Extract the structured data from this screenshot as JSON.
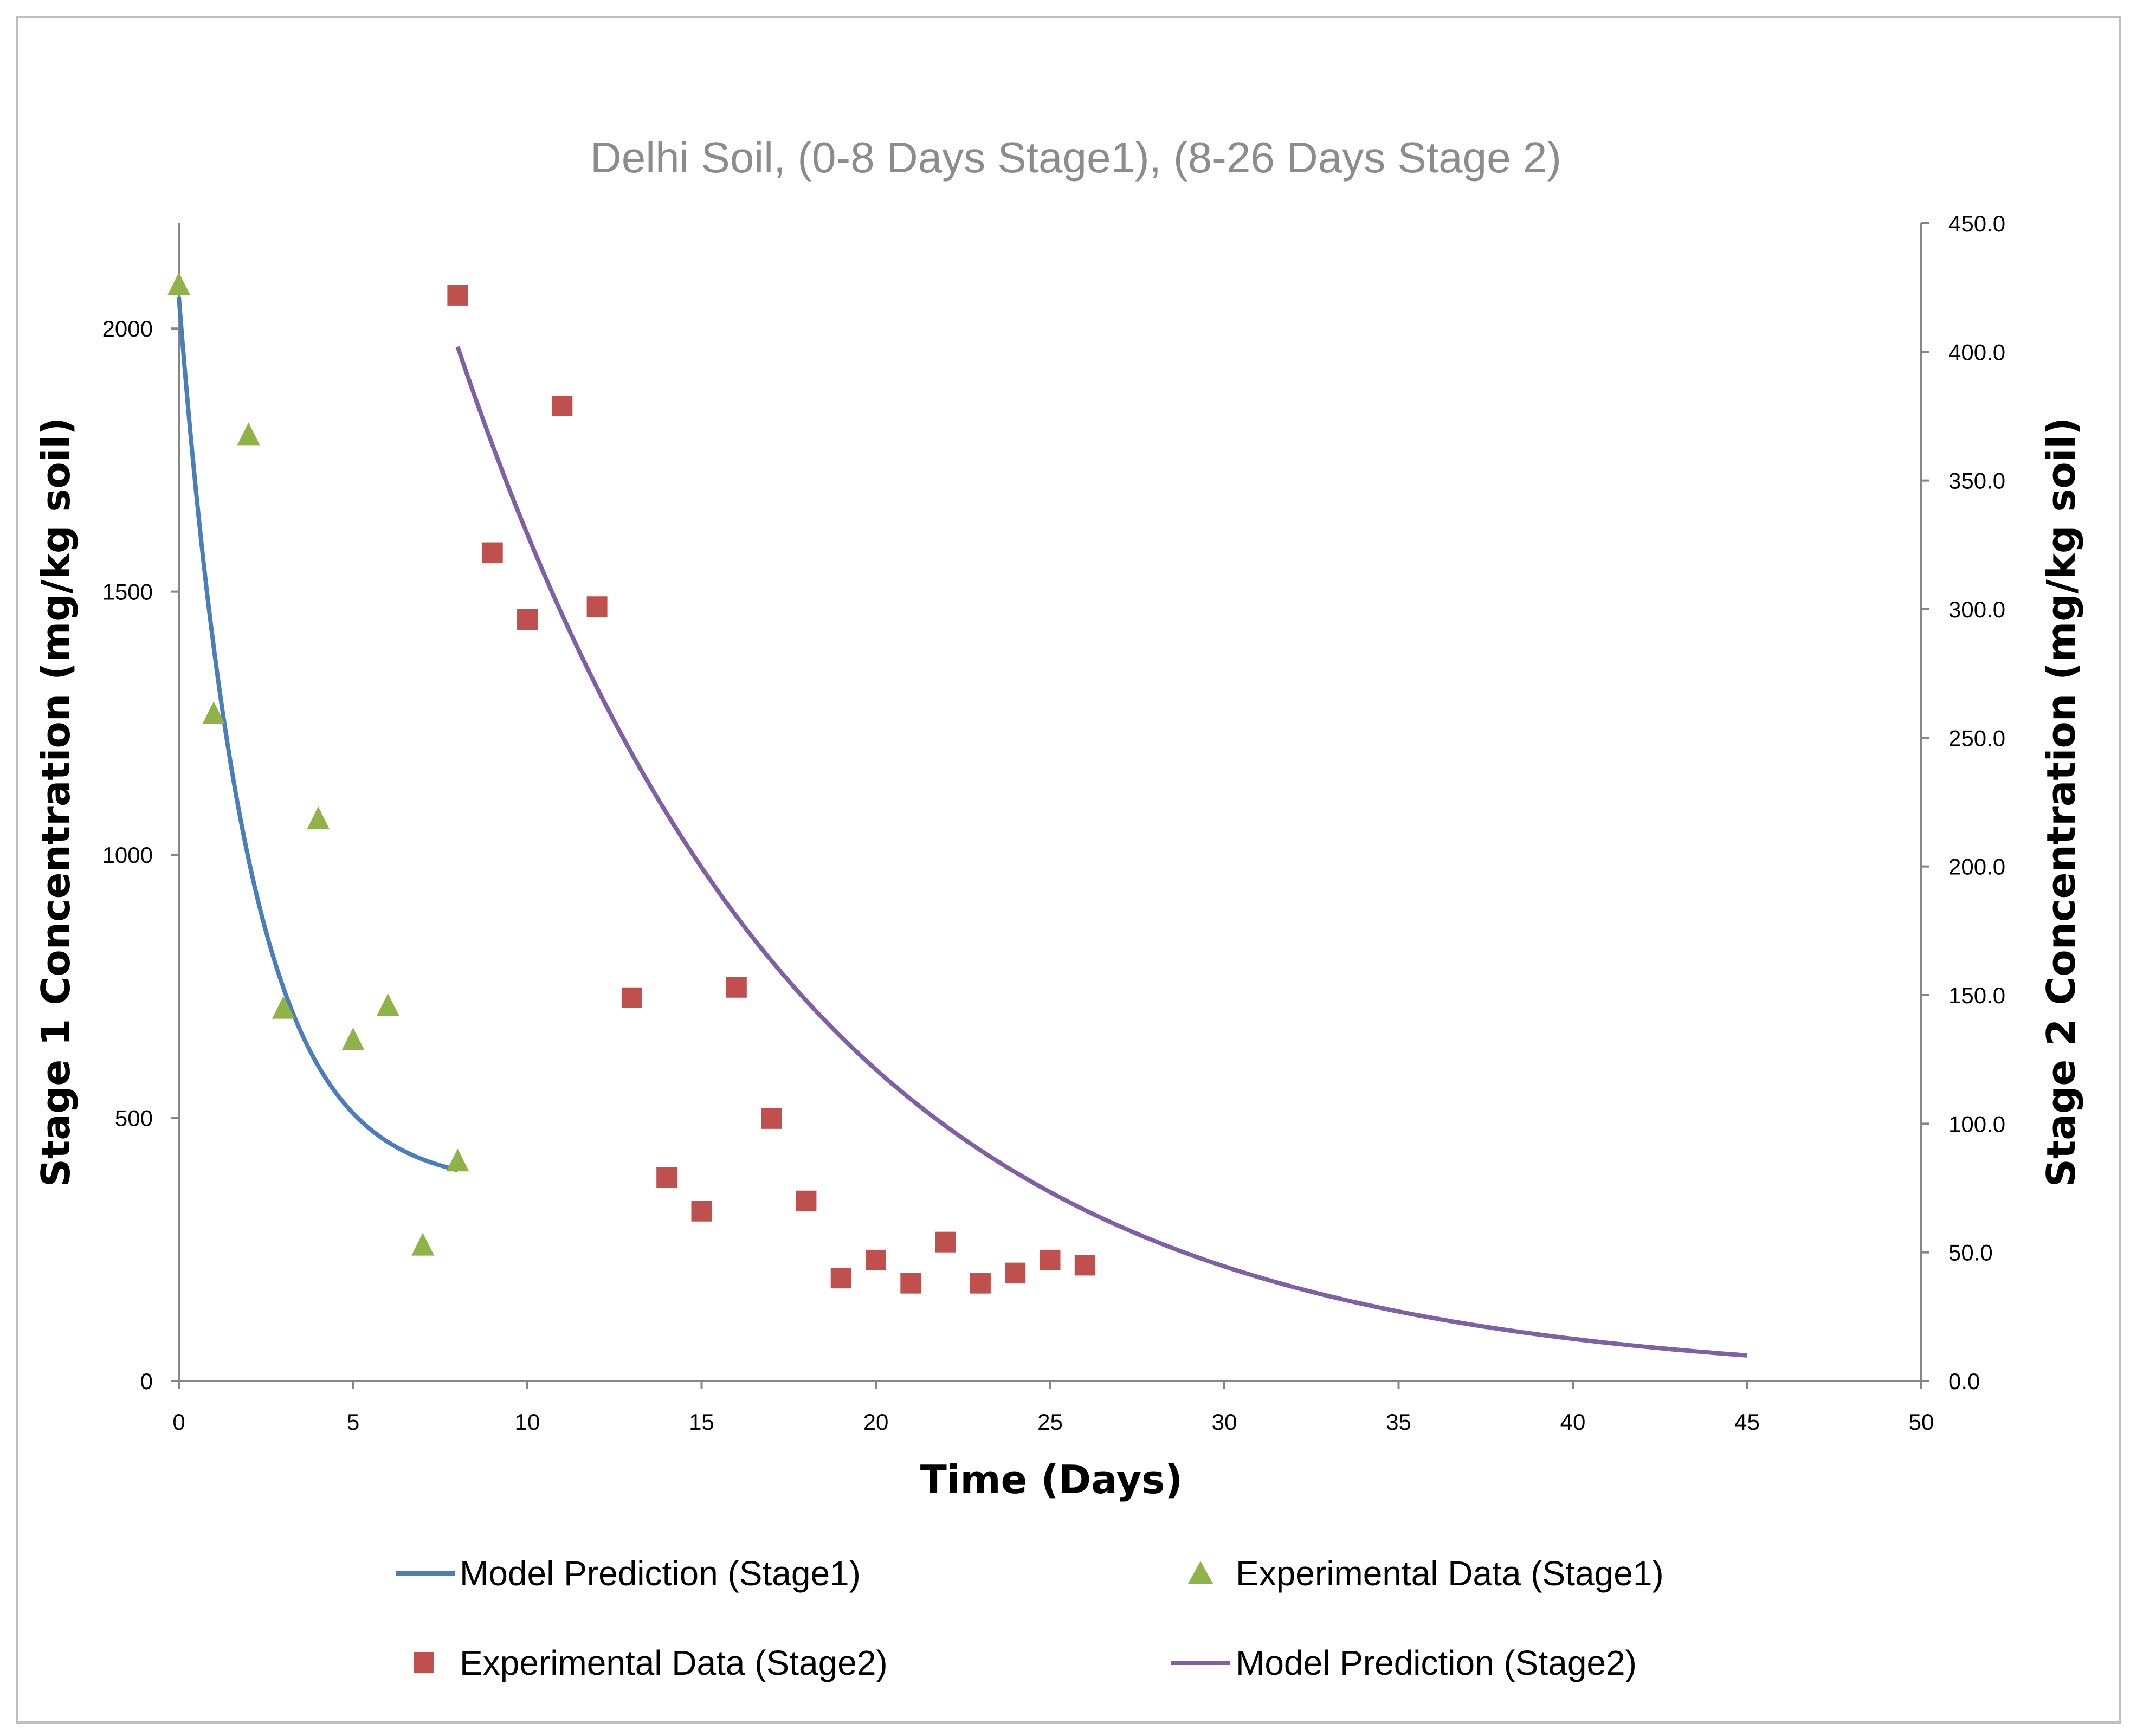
{
  "chart_data": {
    "type": "scatter",
    "title": "Delhi Soil, (0-8 Days Stage1), (8-26 Days Stage 2)",
    "xlabel": "Time (Days)",
    "ylabel_left": "Stage 1 Concentration (mg/kg soil)",
    "ylabel_right": "Stage 2 Concentration (mg/kg soil)",
    "xlim": [
      0,
      50
    ],
    "ylim_left": [
      0,
      2200
    ],
    "ylim_right": [
      0,
      450
    ],
    "x_ticks": [
      "0",
      "5",
      "10",
      "15",
      "20",
      "25",
      "30",
      "35",
      "40",
      "45",
      "50"
    ],
    "y_left_ticks": [
      "0",
      "500",
      "1000",
      "1500",
      "2000"
    ],
    "y_right_ticks": [
      "0.0",
      "50.0",
      "100.0",
      "150.0",
      "200.0",
      "250.0",
      "300.0",
      "350.0",
      "400.0",
      "450.0"
    ],
    "legend_position": "bottom",
    "series": [
      {
        "name": "Model Prediction (Stage1)",
        "kind": "line",
        "axis": "left",
        "color": "#4a7ebb",
        "model": {
          "c0": 2060,
          "cinf": 370,
          "k": 0.5,
          "x_start": 0,
          "x_end": 8
        }
      },
      {
        "name": "Experimental Data (Stage1)",
        "kind": "scatter",
        "marker": "triangle",
        "axis": "left",
        "color": "#8fb347",
        "x": [
          0,
          1,
          2,
          3,
          4,
          5,
          6,
          7,
          8
        ],
        "y": [
          2085,
          1270,
          1800,
          710,
          1070,
          650,
          715,
          260,
          420
        ]
      },
      {
        "name": "Experimental Data (Stage2)",
        "kind": "scatter",
        "marker": "square",
        "axis": "right",
        "color": "#c0504d",
        "x": [
          8,
          9,
          10,
          11,
          12,
          13,
          14,
          15,
          16,
          17,
          18,
          19,
          20,
          21,
          22,
          23,
          24,
          25,
          26
        ],
        "y": [
          422,
          322,
          296,
          379,
          301,
          149,
          79,
          66,
          153,
          102,
          70,
          40,
          47,
          38,
          54,
          38,
          42,
          47,
          45
        ]
      },
      {
        "name": "Model Prediction (Stage2)",
        "kind": "line",
        "axis": "right",
        "color": "#7f5fa5",
        "model": {
          "c0": 402,
          "cinf": 0,
          "k": 0.1,
          "x_start": 8,
          "x_end": 45
        }
      }
    ]
  }
}
